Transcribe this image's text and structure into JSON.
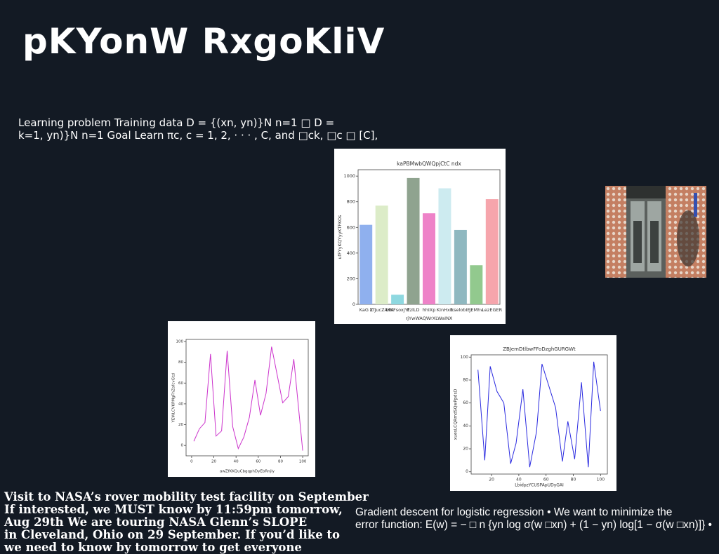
{
  "slide": {
    "title": "pKYonW RxgoKliV",
    "paragraph": [
      "Learning problem Training data D = {(xn, yn)}N n=1 □ D =",
      "k=1, yn)}N n=1 Goal Learn πc, c = 1, 2, · · · , C, and □ck, □c □ [C],"
    ],
    "notes": [
      "Visit to NASA’s rover mobility test facility on September",
      "If interested, we MUST know by 11:59pm tomorrow,",
      "Aug 29th We are touring NASA Glenn’s SLOPE",
      "in Cleveland, Ohio on 29 September. If you’d like to",
      "we need to know by tomorrow to get everyone"
    ],
    "gradient": [
      "Gradient descent for logistic regression • We want to minimize the",
      "error function: E(w) = − □ n {yn log σ(w □xn) + (1 − yn) log[1 − σ(w □xn)]} •"
    ]
  },
  "chart_data": [
    {
      "type": "bar",
      "title": "kaPBMwbQWQpjCtC ndx",
      "x_label": "rjYwWAQWrXLWaINX",
      "y_label": "ufFYyKQYyyKTFKOs",
      "categories": [
        "KaG k",
        "ZfJucZAKA",
        "bRIFsoxjYf",
        "EzlLD",
        "hhIXp",
        "KinHxE",
        "kselobIE",
        "JEMhv",
        "LezEGER"
      ],
      "values": [
        620,
        770,
        75,
        985,
        710,
        905,
        580,
        305,
        820
      ],
      "colors": [
        "#8fb0ee",
        "#dcecc8",
        "#8ed8e0",
        "#8fa38f",
        "#ee82c8",
        "#cdebf0",
        "#8fb8c0",
        "#92c98e",
        "#f6a5ac"
      ],
      "ylim": [
        0,
        1050
      ],
      "yticks": [
        0,
        200,
        400,
        600,
        800,
        1000
      ]
    },
    {
      "type": "line",
      "x_label": "awZfKKQuCbgqphDyEbRnjly",
      "y_label": "YEWLCVKPMgFhZafcvGtzl",
      "color": "#cc33cc",
      "x": [
        2,
        7,
        12,
        17,
        22,
        27,
        32,
        37,
        42,
        47,
        52,
        57,
        62,
        67,
        72,
        77,
        82,
        87,
        92,
        100
      ],
      "values": [
        4,
        16,
        22,
        88,
        9,
        14,
        91,
        18,
        -3,
        8,
        27,
        63,
        29,
        50,
        95,
        68,
        41,
        47,
        83,
        -5
      ],
      "xlim": [
        -5,
        105
      ],
      "ylim": [
        -10,
        102
      ],
      "xticks": [
        0,
        20,
        40,
        60,
        80,
        100
      ],
      "yticks": [
        0,
        20,
        40,
        60,
        80,
        100
      ]
    },
    {
      "type": "line",
      "title": "ZBJemDtlbwFFoDzghGURGWt",
      "x_label": "LbidpzYCUSPApUDyGAI",
      "y_label": "xuesLCQRmdSQwPpdsD",
      "color": "#2a2ae0",
      "x": [
        10,
        15,
        19,
        24,
        29,
        34,
        38,
        43,
        48,
        53,
        57,
        62,
        67,
        72,
        76,
        81,
        86,
        91,
        95,
        100
      ],
      "values": [
        89,
        10,
        92,
        70,
        60,
        7,
        25,
        72,
        4,
        35,
        94,
        75,
        56,
        9,
        44,
        11,
        78,
        4,
        96,
        53
      ],
      "xlim": [
        5,
        105
      ],
      "ylim": [
        -2,
        102
      ],
      "xticks": [
        20,
        40,
        60,
        80,
        100
      ],
      "yticks": [
        0,
        20,
        40,
        60,
        80,
        100
      ]
    }
  ]
}
